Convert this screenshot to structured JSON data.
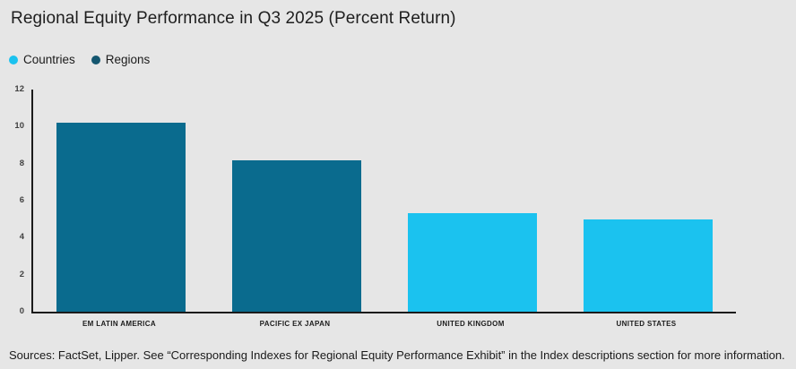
{
  "title": "Regional Equity Performance in Q3 2025 (Percent Return)",
  "legend": {
    "items": [
      {
        "label": "Countries",
        "color": "#1BC2EF"
      },
      {
        "label": "Regions",
        "color": "#14566F"
      }
    ]
  },
  "source_note": "Sources: FactSet, Lipper. See “Corresponding Indexes for Regional Equity Performance Exhibit” in the Index descriptions section for more information.",
  "colors": {
    "background": "#E6E6E6",
    "axis": "#1B1B1B",
    "regions_bar": "#0A6B8E",
    "countries_bar": "#1BC2EF"
  },
  "chart_data": {
    "type": "bar",
    "title": "Regional Equity Performance in Q3 2025 (Percent Return)",
    "categories": [
      "EM LATIN AMERICA",
      "PACIFIC EX JAPAN",
      "UNITED KINGDOM",
      "UNITED STATES"
    ],
    "values": [
      10.2,
      8.2,
      5.3,
      5.0
    ],
    "series_of_bar": [
      "Regions",
      "Regions",
      "Countries",
      "Countries"
    ],
    "bar_colors": [
      "#0A6B8E",
      "#0A6B8E",
      "#1BC2EF",
      "#1BC2EF"
    ],
    "xlabel": "",
    "ylabel": "",
    "ylim": [
      0,
      12
    ],
    "yticks": [
      0,
      2,
      4,
      6,
      8,
      10,
      12
    ],
    "grid": false,
    "legend_position": "top-left",
    "legend_entries": [
      "Countries",
      "Regions"
    ]
  }
}
